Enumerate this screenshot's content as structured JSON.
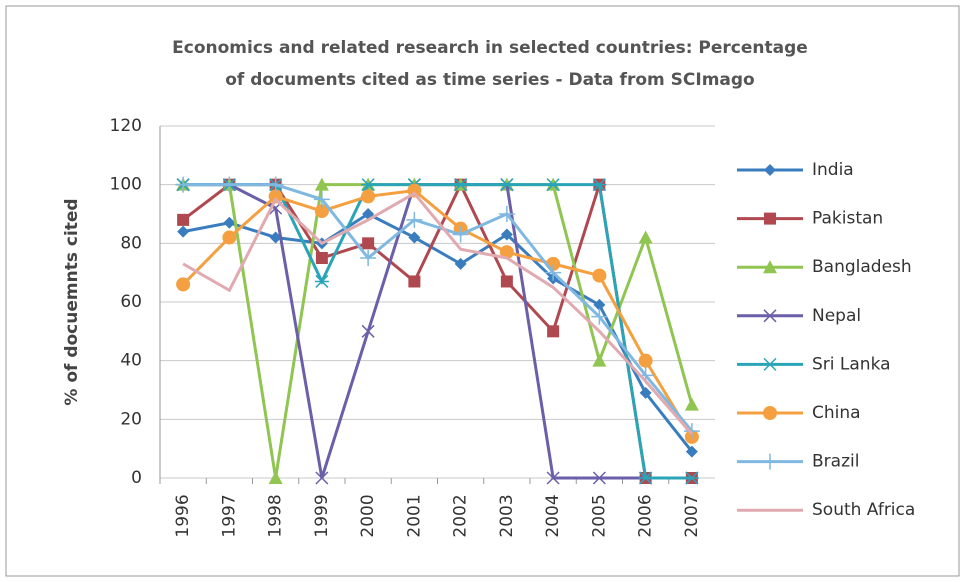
{
  "chart_data": {
    "type": "line",
    "title": [
      "Economics and  related research in selected countries: Percentage",
      "of documents cited as time series - Data from SCImago"
    ],
    "y_label": "% of docuemnts cited",
    "categories": [
      "1996",
      "1997",
      "1998",
      "1999",
      "2000",
      "2001",
      "2002",
      "2003",
      "2004",
      "2005",
      "2006",
      "2007"
    ],
    "ylim": [
      0,
      120
    ],
    "yticks": [
      0,
      20,
      40,
      60,
      80,
      100,
      120
    ],
    "grid": true,
    "legend": "right",
    "series": [
      {
        "name": "India",
        "color": "#3a7dbf",
        "marker": "diamond",
        "values": [
          84,
          87,
          82,
          80,
          90,
          82,
          73,
          83,
          68,
          59,
          29,
          9
        ]
      },
      {
        "name": "Pakistan",
        "color": "#b04850",
        "marker": "square",
        "values": [
          88,
          100,
          100,
          75,
          80,
          67,
          100,
          67,
          50,
          100,
          0,
          0
        ]
      },
      {
        "name": "Bangladesh",
        "color": "#8fc550",
        "marker": "triangle",
        "values": [
          100,
          100,
          0,
          100,
          100,
          100,
          100,
          100,
          100,
          40,
          82,
          25
        ]
      },
      {
        "name": "Nepal",
        "color": "#6a5fa8",
        "marker": "x",
        "values": [
          100,
          100,
          92,
          0,
          50,
          100,
          100,
          100,
          0,
          0,
          0,
          0
        ]
      },
      {
        "name": "Sri Lanka",
        "color": "#2aa5b8",
        "marker": "star",
        "values": [
          100,
          100,
          100,
          67,
          100,
          100,
          100,
          100,
          100,
          100,
          0,
          0
        ]
      },
      {
        "name": "China",
        "color": "#f4a040",
        "marker": "circle",
        "values": [
          66,
          82,
          96,
          91,
          96,
          98,
          85,
          77,
          73,
          69,
          40,
          14
        ]
      },
      {
        "name": "Brazil",
        "color": "#7fb8e0",
        "marker": "plus",
        "values": [
          100,
          100,
          100,
          95,
          75,
          88,
          83,
          90,
          70,
          55,
          35,
          16
        ]
      },
      {
        "name": "South Africa",
        "color": "#e0aab0",
        "marker": "none",
        "values": [
          73,
          64,
          95,
          80,
          88,
          97,
          78,
          75,
          65,
          50,
          33,
          15
        ]
      }
    ]
  }
}
